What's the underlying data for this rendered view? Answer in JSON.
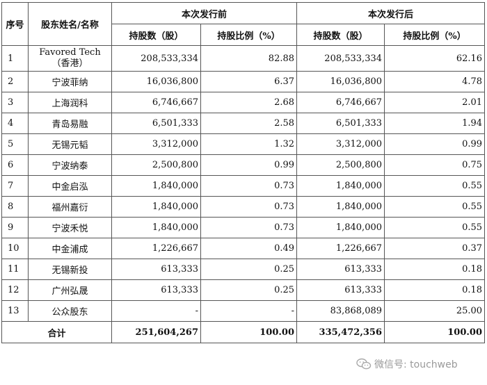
{
  "headers": {
    "seq": "序号",
    "name": "股东姓名/名称",
    "before": "本次发行前",
    "after": "本次发行后",
    "shares": "持股数（股）",
    "ratio": "持股比例（%）"
  },
  "rows": [
    {
      "no": "1",
      "name_en": "Favored Tech",
      "name": "（香港）",
      "before_shares": "208,533,334",
      "before_ratio": "82.88",
      "after_shares": "208,533,334",
      "after_ratio": "62.16"
    },
    {
      "no": "2",
      "name": "宁波菲纳",
      "before_shares": "16,036,800",
      "before_ratio": "6.37",
      "after_shares": "16,036,800",
      "after_ratio": "4.78"
    },
    {
      "no": "3",
      "name": "上海润科",
      "before_shares": "6,746,667",
      "before_ratio": "2.68",
      "after_shares": "6,746,667",
      "after_ratio": "2.01"
    },
    {
      "no": "4",
      "name": "青岛易融",
      "before_shares": "6,501,333",
      "before_ratio": "2.58",
      "after_shares": "6,501,333",
      "after_ratio": "1.94"
    },
    {
      "no": "5",
      "name": "无锡元韬",
      "before_shares": "3,312,000",
      "before_ratio": "1.32",
      "after_shares": "3,312,000",
      "after_ratio": "0.99"
    },
    {
      "no": "6",
      "name": "宁波纳泰",
      "before_shares": "2,500,800",
      "before_ratio": "0.99",
      "after_shares": "2,500,800",
      "after_ratio": "0.75"
    },
    {
      "no": "7",
      "name": "中金启泓",
      "before_shares": "1,840,000",
      "before_ratio": "0.73",
      "after_shares": "1,840,000",
      "after_ratio": "0.55"
    },
    {
      "no": "8",
      "name": "福州嘉衍",
      "before_shares": "1,840,000",
      "before_ratio": "0.73",
      "after_shares": "1,840,000",
      "after_ratio": "0.55"
    },
    {
      "no": "9",
      "name": "宁波禾悦",
      "before_shares": "1,840,000",
      "before_ratio": "0.73",
      "after_shares": "1,840,000",
      "after_ratio": "0.55"
    },
    {
      "no": "10",
      "name": "中金浦成",
      "before_shares": "1,226,667",
      "before_ratio": "0.49",
      "after_shares": "1,226,667",
      "after_ratio": "0.37"
    },
    {
      "no": "11",
      "name": "无锡新投",
      "before_shares": "613,333",
      "before_ratio": "0.25",
      "after_shares": "613,333",
      "after_ratio": "0.18"
    },
    {
      "no": "12",
      "name": "广州弘晟",
      "before_shares": "613,333",
      "before_ratio": "0.25",
      "after_shares": "613,333",
      "after_ratio": "0.18"
    },
    {
      "no": "13",
      "name": "公众股东",
      "before_shares": "-",
      "before_ratio": "-",
      "after_shares": "83,868,089",
      "after_ratio": "25.00"
    }
  ],
  "total": {
    "label": "合计",
    "before_shares": "251,604,267",
    "before_ratio": "100.00",
    "after_shares": "335,472,356",
    "after_ratio": "100.00"
  },
  "watermark": {
    "text": "微信号: touchweb",
    "icon": "wechat-icon"
  }
}
